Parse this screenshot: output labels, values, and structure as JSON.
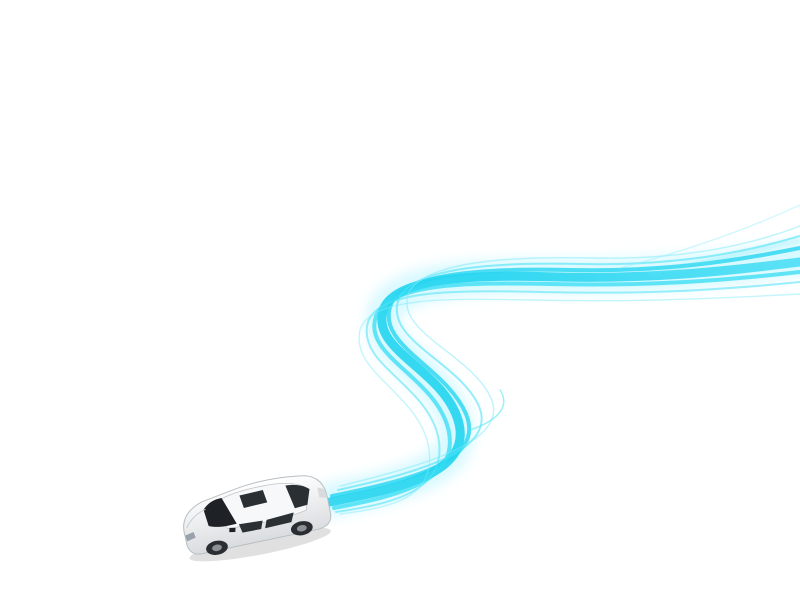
{
  "scene": {
    "background": "#ffffff",
    "trail_color": "#1fd3ef",
    "trail_glow_color": "#8feeff",
    "car_body_color": "#f4f5f6",
    "car_glass_color": "#1e2226",
    "car_wheel_color": "#2a2d31"
  },
  "elements": {
    "car": "white-sedan",
    "trail": "light-speed-trail"
  }
}
